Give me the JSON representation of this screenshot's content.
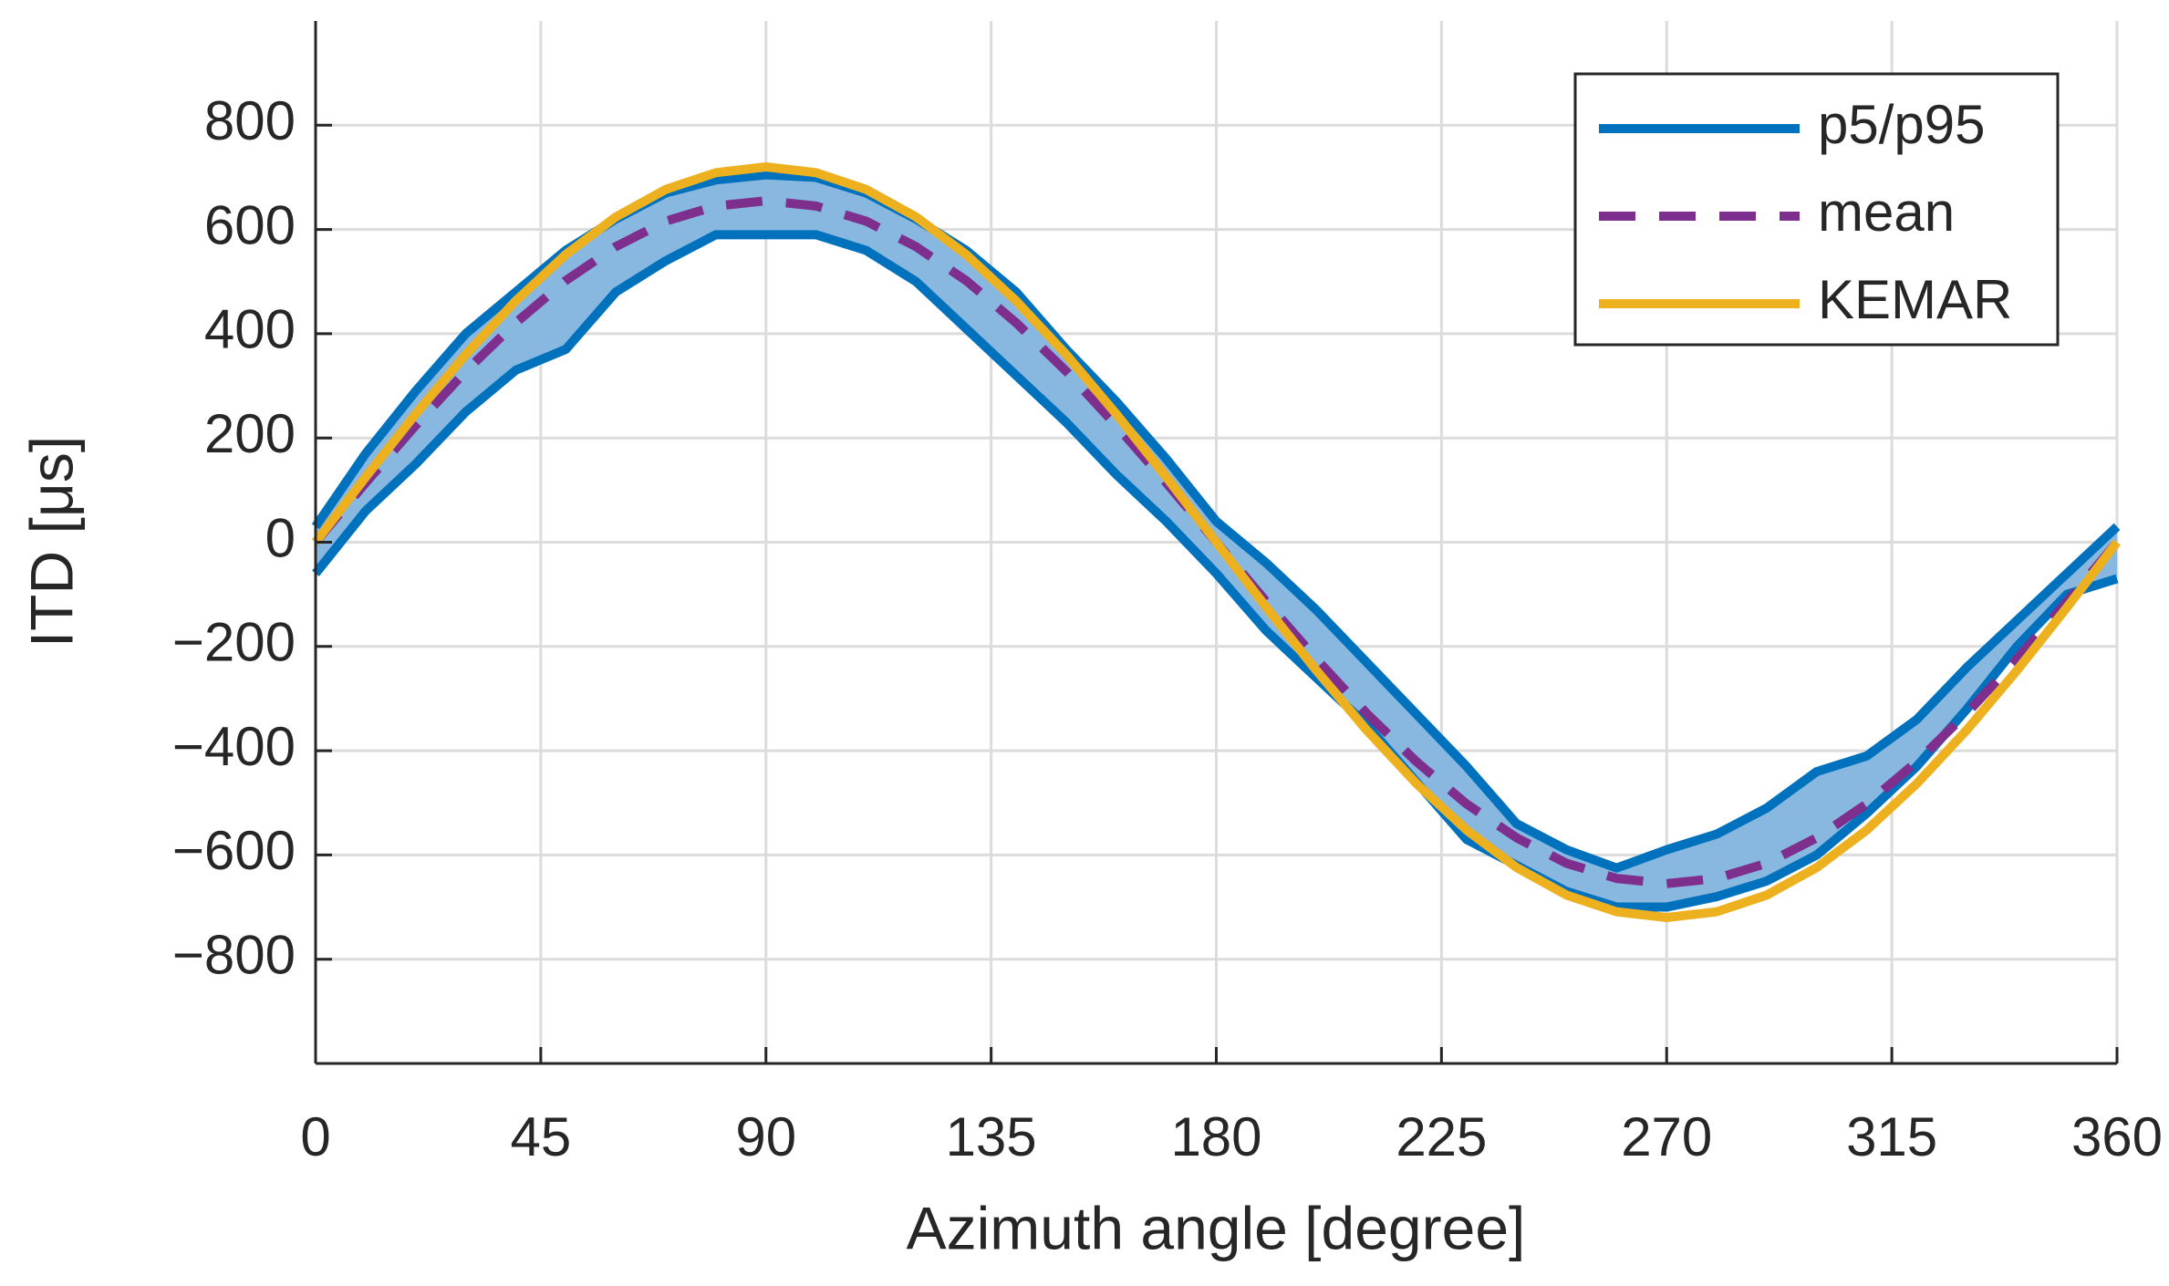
{
  "chart_data": {
    "type": "line",
    "xlabel": "Azimuth angle [degree]",
    "ylabel": "ITD [μs]",
    "x": [
      0,
      10,
      20,
      30,
      40,
      50,
      60,
      70,
      80,
      90,
      100,
      110,
      120,
      130,
      140,
      150,
      160,
      170,
      180,
      190,
      200,
      210,
      220,
      230,
      240,
      250,
      260,
      270,
      280,
      290,
      300,
      310,
      320,
      330,
      340,
      350,
      360
    ],
    "series": [
      {
        "name": "p5/p95",
        "color": "#0072bd",
        "fill_color": "#88b8e0",
        "upper": [
          30,
          170,
          290,
          400,
          480,
          560,
          620,
          670,
          695,
          705,
          700,
          670,
          620,
          560,
          480,
          370,
          270,
          160,
          40,
          -40,
          -130,
          -230,
          -330,
          -430,
          -540,
          -590,
          -625,
          -590,
          -560,
          -510,
          -440,
          -410,
          -340,
          -240,
          -150,
          -60,
          30
        ],
        "lower": [
          -60,
          60,
          150,
          250,
          330,
          370,
          480,
          540,
          590,
          590,
          590,
          560,
          500,
          410,
          320,
          230,
          130,
          40,
          -60,
          -170,
          -260,
          -350,
          -460,
          -570,
          -620,
          -670,
          -700,
          -700,
          -680,
          -650,
          -600,
          -520,
          -430,
          -320,
          -200,
          -100,
          -70
        ]
      },
      {
        "name": "mean",
        "color": "#7e2f8e",
        "dashed": true,
        "values": [
          0,
          114,
          224,
          328,
          421,
          502,
          567,
          616,
          645,
          655,
          645,
          616,
          567,
          502,
          421,
          328,
          224,
          114,
          0,
          -114,
          -224,
          -328,
          -421,
          -502,
          -567,
          -616,
          -645,
          -655,
          -645,
          -616,
          -567,
          -502,
          -421,
          -328,
          -224,
          -114,
          0
        ]
      },
      {
        "name": "KEMAR",
        "color": "#edb120",
        "values": [
          0,
          125,
          246,
          360,
          463,
          552,
          624,
          677,
          709,
          720,
          709,
          677,
          624,
          552,
          463,
          360,
          246,
          125,
          0,
          -125,
          -246,
          -360,
          -463,
          -552,
          -624,
          -677,
          -709,
          -720,
          -709,
          -677,
          -624,
          -552,
          -463,
          -360,
          -246,
          -125,
          0
        ]
      }
    ],
    "xlim": [
      0,
      360
    ],
    "xticks": [
      0,
      45,
      90,
      135,
      180,
      225,
      270,
      315,
      360
    ],
    "ylim": [
      -1000,
      1000
    ],
    "yticks": [
      {
        "value": -800,
        "label": "−800"
      },
      {
        "value": -600,
        "label": "−600"
      },
      {
        "value": -400,
        "label": "−400"
      },
      {
        "value": -200,
        "label": "−200"
      },
      0,
      200,
      400,
      600,
      800
    ],
    "grid": true,
    "legend": "upper right"
  }
}
